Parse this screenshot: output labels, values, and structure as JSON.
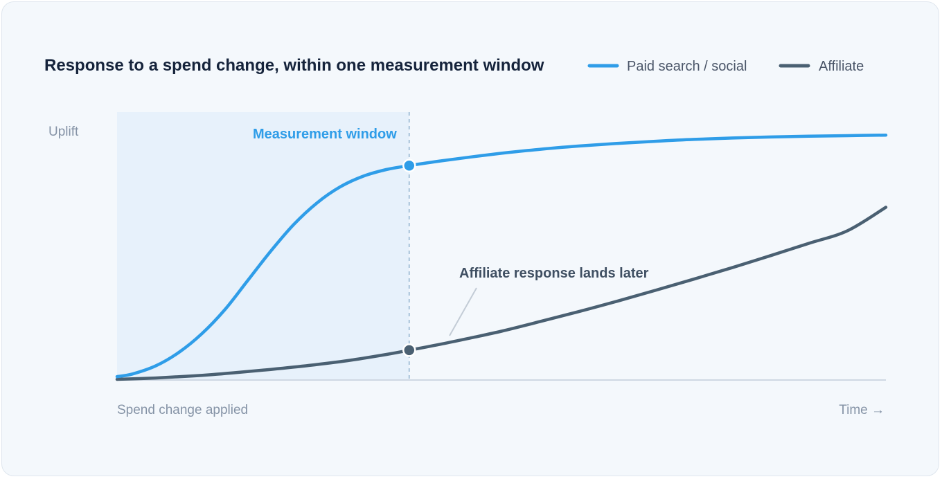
{
  "colors": {
    "paid": "#2f9de8",
    "affiliate": "#4a6072",
    "window_fill": "#e7f1fb",
    "window_label": "#2f9de8",
    "axis": "#cfd8e3"
  },
  "chart_data": {
    "type": "line",
    "title": "Response to a spend change, within one measurement window",
    "xlabel": "Time →",
    "x_start_label": "Spend change applied",
    "ylabel": "Uplift",
    "xlim": [
      0,
      100
    ],
    "ylim": [
      0,
      100
    ],
    "grid": false,
    "legend_position": "top-right",
    "window": {
      "label": "Measurement window",
      "start": 0,
      "end": 38
    },
    "annotation": "Affiliate response lands later",
    "series": [
      {
        "name": "Paid search / social",
        "color": "#2f9de8",
        "x": [
          0,
          2,
          5,
          8,
          11,
          14,
          17,
          20,
          23,
          26,
          29,
          32,
          35,
          38,
          42,
          46,
          50,
          55,
          60,
          65,
          70,
          75,
          80,
          85,
          90,
          95,
          100
        ],
        "values": [
          1,
          2,
          5,
          10,
          17,
          26,
          37,
          48,
          58,
          66,
          72,
          76,
          78.5,
          80,
          81.7,
          83.2,
          84.6,
          86.1,
          87.3,
          88.3,
          89.1,
          89.8,
          90.3,
          90.7,
          91.0,
          91.2,
          91.4
        ],
        "marker": {
          "x": 38,
          "y": 80
        }
      },
      {
        "name": "Affiliate",
        "color": "#4a6072",
        "x": [
          0,
          5,
          10,
          15,
          20,
          25,
          30,
          35,
          38,
          42,
          46,
          50,
          55,
          60,
          65,
          70,
          75,
          80,
          85,
          90,
          95,
          100
        ],
        "values": [
          0,
          0.5,
          1.3,
          2.4,
          3.7,
          5.2,
          7.0,
          9.3,
          10.9,
          13.1,
          15.5,
          18.0,
          21.6,
          25.3,
          29.2,
          33.3,
          37.5,
          41.8,
          46.3,
          50.9,
          55.6,
          64.4
        ],
        "marker": {
          "x": 38,
          "y": 10.9
        }
      }
    ]
  }
}
